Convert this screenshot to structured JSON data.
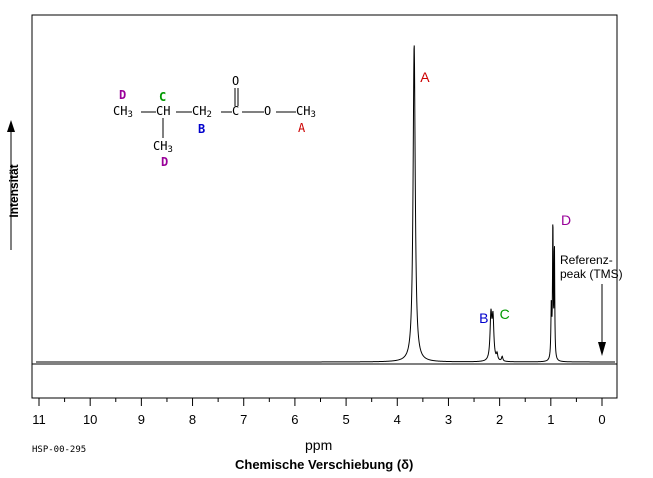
{
  "chart_data": {
    "type": "line",
    "title": "",
    "xlabel": "ppm",
    "xsublabel": "Chemische Verschiebung (δ)",
    "ylabel": "Intensität",
    "xlim": [
      11.4,
      -0.3
    ],
    "x_reversed": true,
    "x_ticks": [
      "11",
      "10",
      "9",
      "8",
      "7",
      "6",
      "5",
      "4",
      "3",
      "2",
      "1",
      "0"
    ],
    "grid": false,
    "legend": "none",
    "series": [
      {
        "peaks": [
          {
            "x": 3.67,
            "y": 1.0,
            "width": 0.05
          },
          {
            "x": 2.17,
            "y": 0.14,
            "width": 0.04
          },
          {
            "x": 2.13,
            "y": 0.13,
            "width": 0.04
          },
          {
            "x": 2.05,
            "y": 0.02,
            "width": 0.03
          },
          {
            "x": 1.95,
            "y": 0.015,
            "width": 0.03
          },
          {
            "x": 0.99,
            "y": 0.17,
            "width": 0.02
          },
          {
            "x": 0.96,
            "y": 0.43,
            "width": 0.015
          },
          {
            "x": 0.93,
            "y": 0.36,
            "width": 0.015
          },
          {
            "x": 0.0,
            "y": 0.0,
            "width": 0.02
          }
        ]
      }
    ],
    "peak_labels": [
      {
        "text": "A",
        "x": 3.55,
        "color": "#cc0000"
      },
      {
        "text": "B",
        "x": 2.4,
        "color": "#0000cc"
      },
      {
        "text": "C",
        "x": 2.0,
        "color": "#009900"
      },
      {
        "text": "D",
        "x": 0.8,
        "color": "#990099"
      }
    ],
    "annotation": {
      "line1": "Referenz-",
      "line2": "peak (TMS)",
      "x": 0.0
    }
  },
  "sample_id": "HSP-00-295",
  "molecule": {
    "ch3_left": "CH",
    "sub3": "3",
    "ch": "CH",
    "ch2": "CH",
    "sub2": "2",
    "c": "C",
    "o_carbonyl": "O",
    "o_ester": "O",
    "ch3_right": "CH",
    "ch3_branch": "CH",
    "label_d_left": "D",
    "label_c": "C",
    "label_b": "B",
    "label_a": "A",
    "label_d_branch": "D"
  },
  "colors": {
    "A": "#cc0000",
    "B": "#0000cc",
    "C": "#009900",
    "D": "#990099"
  }
}
